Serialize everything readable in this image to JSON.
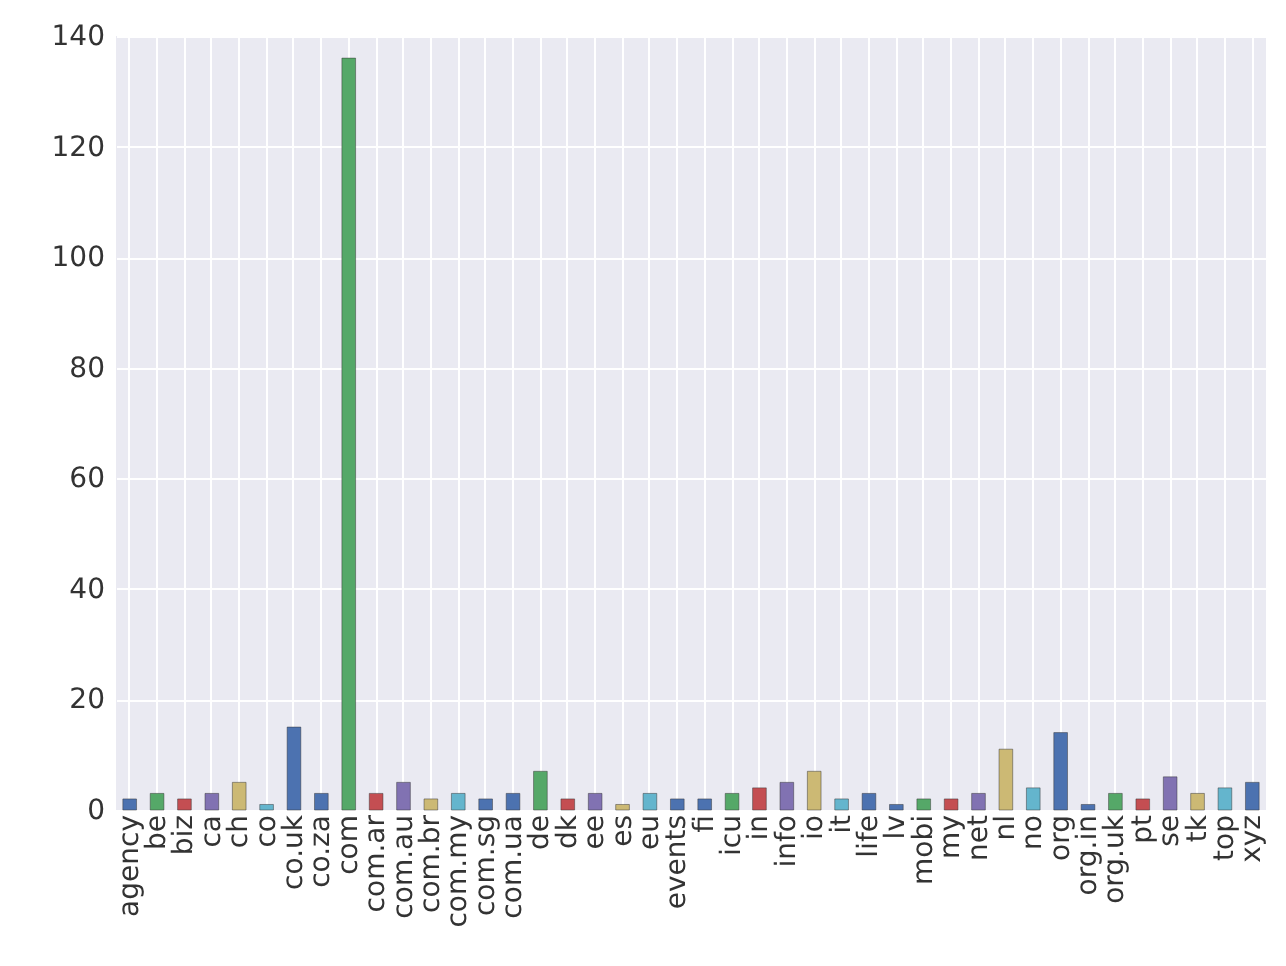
{
  "chart_data": {
    "type": "bar",
    "categories": [
      "agency",
      "be",
      "biz",
      "ca",
      "ch",
      "co",
      "co.uk",
      "co.za",
      "com",
      "com.ar",
      "com.au",
      "com.br",
      "com.my",
      "com.sg",
      "com.ua",
      "de",
      "dk",
      "ee",
      "es",
      "eu",
      "events",
      "fi",
      "icu",
      "in",
      "info",
      "io",
      "it",
      "life",
      "lv",
      "mobi",
      "my",
      "net",
      "nl",
      "no",
      "org",
      "org.in",
      "org.uk",
      "pt",
      "se",
      "tk",
      "top",
      "xyz"
    ],
    "values": [
      2,
      3,
      2,
      3,
      5,
      1,
      15,
      3,
      136,
      3,
      5,
      2,
      3,
      2,
      3,
      7,
      2,
      3,
      1,
      3,
      2,
      2,
      3,
      4,
      5,
      7,
      2,
      3,
      1,
      2,
      2,
      3,
      11,
      4,
      14,
      1,
      3,
      2,
      6,
      3,
      4,
      5
    ],
    "colors": [
      "#4c72b0",
      "#55a868",
      "#c44e52",
      "#8172b2",
      "#ccb974",
      "#64b5cd",
      "#4c72b0",
      "#4c72b0",
      "#55a868",
      "#c44e52",
      "#8172b2",
      "#ccb974",
      "#64b5cd",
      "#4c72b0",
      "#4c72b0",
      "#55a868",
      "#c44e52",
      "#8172b2",
      "#ccb974",
      "#64b5cd",
      "#4c72b0",
      "#4c72b0",
      "#55a868",
      "#c44e52",
      "#8172b2",
      "#ccb974",
      "#64b5cd",
      "#4c72b0",
      "#4c72b0",
      "#55a868",
      "#c44e52",
      "#8172b2",
      "#ccb974",
      "#64b5cd",
      "#4c72b0",
      "#4c72b0",
      "#55a868",
      "#c44e52",
      "#8172b2",
      "#ccb974",
      "#64b5cd",
      "#4c72b0"
    ],
    "ylim": [
      0,
      140
    ],
    "yticks": [
      0,
      20,
      40,
      60,
      80,
      100,
      120,
      140
    ],
    "grid": true
  }
}
